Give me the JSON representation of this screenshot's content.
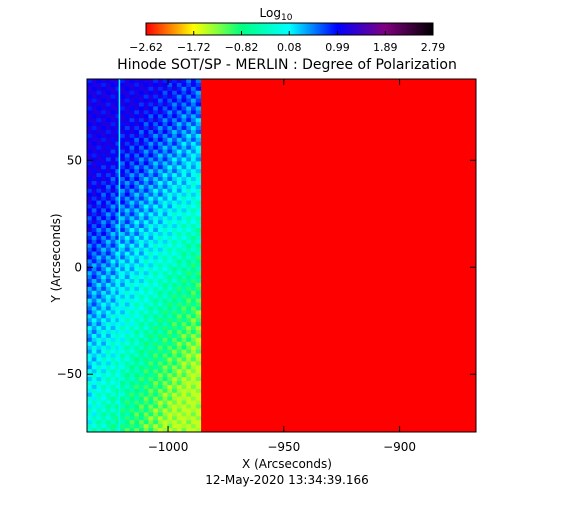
{
  "chart_data": {
    "type": "heatmap",
    "title": "Hinode SOT/SP - MERLIN : Degree of Polarization",
    "xlabel": "X (Arcseconds)",
    "ylabel": "Y (Arcseconds)",
    "footer": "12-May-2020 13:34:39.166",
    "xlim": [
      -1035,
      -867
    ],
    "ylim": [
      -77,
      88
    ],
    "x_ticks": [
      -1000,
      -950,
      -900
    ],
    "x_tick_labels": [
      "−1000",
      "−950",
      "−900"
    ],
    "y_ticks": [
      50,
      0,
      -50
    ],
    "y_tick_labels": [
      "50",
      "0",
      "−50"
    ],
    "colorbar": {
      "label": "Log",
      "label_subscript": "10",
      "range": [
        -2.62,
        2.79
      ],
      "tick_values": [
        -2.62,
        -1.72,
        -0.82,
        0.08,
        0.99,
        1.89,
        2.79
      ],
      "tick_labels": [
        "−2.62",
        "−1.72",
        "−0.82",
        "0.08",
        "0.99",
        "1.89",
        "2.79"
      ],
      "colormap": [
        "#ff0000",
        "#ffff00",
        "#00ff80",
        "#00ffff",
        "#0000ff",
        "#800080",
        "#000000"
      ]
    },
    "regions": {
      "off_limb_boundary_x": -986,
      "disk_value": -2.62,
      "off_limb_value_range": [
        -1.5,
        1.2
      ],
      "vertical_line_x": -1021
    }
  }
}
